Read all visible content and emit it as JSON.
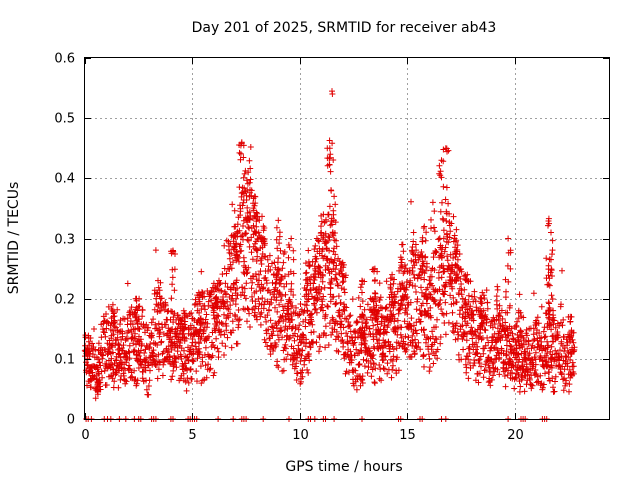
{
  "chart_data": {
    "type": "scatter",
    "title": "Day 201 of 2025, SRMTID for receiver ab43",
    "xlabel": "GPS time / hours",
    "ylabel": "SRMTID / TECUs",
    "xlim": [
      0,
      24.4
    ],
    "ylim": [
      0,
      0.6
    ],
    "xticks": [
      0,
      5,
      10,
      15,
      20
    ],
    "yticks": [
      0,
      0.1,
      0.2,
      0.3,
      0.4,
      0.5,
      0.6
    ],
    "xtick_labels": [
      "0",
      "5",
      "10",
      "15",
      "20"
    ],
    "ytick_labels": [
      "0",
      "0.1",
      "0.2",
      "0.3",
      "0.4",
      "0.5",
      "0.6"
    ],
    "grid": true,
    "marker": "+",
    "series_color": "#e00000",
    "description_envelope": [
      [
        0.0,
        0.11
      ],
      [
        0.3,
        0.09
      ],
      [
        0.6,
        0.08
      ],
      [
        1.0,
        0.12
      ],
      [
        1.5,
        0.11
      ],
      [
        2.0,
        0.12
      ],
      [
        2.5,
        0.13
      ],
      [
        3.0,
        0.1
      ],
      [
        3.5,
        0.15
      ],
      [
        4.0,
        0.13
      ],
      [
        4.5,
        0.11
      ],
      [
        5.0,
        0.12
      ],
      [
        5.5,
        0.14
      ],
      [
        6.0,
        0.15
      ],
      [
        6.5,
        0.19
      ],
      [
        7.0,
        0.24
      ],
      [
        7.5,
        0.3
      ],
      [
        8.0,
        0.26
      ],
      [
        8.5,
        0.2
      ],
      [
        9.0,
        0.18
      ],
      [
        9.5,
        0.15
      ],
      [
        10.0,
        0.12
      ],
      [
        10.5,
        0.17
      ],
      [
        11.0,
        0.22
      ],
      [
        11.5,
        0.24
      ],
      [
        12.0,
        0.16
      ],
      [
        12.5,
        0.1
      ],
      [
        13.0,
        0.12
      ],
      [
        13.5,
        0.14
      ],
      [
        14.0,
        0.13
      ],
      [
        14.5,
        0.16
      ],
      [
        15.0,
        0.18
      ],
      [
        15.5,
        0.2
      ],
      [
        16.0,
        0.16
      ],
      [
        16.5,
        0.22
      ],
      [
        17.0,
        0.25
      ],
      [
        17.5,
        0.19
      ],
      [
        18.0,
        0.14
      ],
      [
        18.5,
        0.13
      ],
      [
        19.0,
        0.12
      ],
      [
        19.5,
        0.12
      ],
      [
        20.0,
        0.1
      ],
      [
        20.5,
        0.1
      ],
      [
        21.0,
        0.11
      ],
      [
        21.5,
        0.12
      ],
      [
        22.0,
        0.11
      ],
      [
        22.5,
        0.1
      ],
      [
        22.8,
        0.11
      ]
    ],
    "peaks": [
      {
        "x": 0.1,
        "y": 0.115
      },
      {
        "x": 0.6,
        "y": 0.045
      },
      {
        "x": 1.3,
        "y": 0.19
      },
      {
        "x": 2.4,
        "y": 0.2
      },
      {
        "x": 3.4,
        "y": 0.23
      },
      {
        "x": 4.1,
        "y": 0.28
      },
      {
        "x": 4.6,
        "y": 0.18
      },
      {
        "x": 5.3,
        "y": 0.21
      },
      {
        "x": 6.1,
        "y": 0.2
      },
      {
        "x": 7.0,
        "y": 0.32
      },
      {
        "x": 7.3,
        "y": 0.46
      },
      {
        "x": 7.6,
        "y": 0.41
      },
      {
        "x": 7.9,
        "y": 0.37
      },
      {
        "x": 8.3,
        "y": 0.3
      },
      {
        "x": 9.0,
        "y": 0.33
      },
      {
        "x": 9.6,
        "y": 0.3
      },
      {
        "x": 10.4,
        "y": 0.28
      },
      {
        "x": 10.8,
        "y": 0.3
      },
      {
        "x": 11.1,
        "y": 0.34
      },
      {
        "x": 11.5,
        "y": 0.545
      },
      {
        "x": 11.4,
        "y": 0.45
      },
      {
        "x": 11.6,
        "y": 0.37
      },
      {
        "x": 12.0,
        "y": 0.26
      },
      {
        "x": 12.9,
        "y": 0.23
      },
      {
        "x": 13.5,
        "y": 0.25
      },
      {
        "x": 14.3,
        "y": 0.24
      },
      {
        "x": 14.8,
        "y": 0.29
      },
      {
        "x": 15.3,
        "y": 0.31
      },
      {
        "x": 15.8,
        "y": 0.32
      },
      {
        "x": 16.2,
        "y": 0.36
      },
      {
        "x": 16.6,
        "y": 0.43
      },
      {
        "x": 16.8,
        "y": 0.45
      },
      {
        "x": 17.2,
        "y": 0.3
      },
      {
        "x": 17.8,
        "y": 0.24
      },
      {
        "x": 18.5,
        "y": 0.21
      },
      {
        "x": 19.2,
        "y": 0.22
      },
      {
        "x": 19.7,
        "y": 0.3
      },
      {
        "x": 20.2,
        "y": 0.18
      },
      {
        "x": 21.6,
        "y": 0.333
      },
      {
        "x": 21.7,
        "y": 0.31
      },
      {
        "x": 21.7,
        "y": 0.265
      },
      {
        "x": 22.6,
        "y": 0.17
      }
    ],
    "zero_markers_x": [
      0.05,
      0.15,
      0.3,
      0.9,
      1.05,
      1.2,
      1.6,
      1.9,
      2.3,
      2.5,
      2.6,
      3.1,
      3.2,
      3.3,
      4.0,
      4.1,
      4.8,
      4.9,
      5.0,
      5.1,
      5.2,
      6.2,
      6.9,
      7.3,
      7.4,
      7.5,
      8.3,
      9.5,
      10.4,
      10.5,
      10.7,
      11.1,
      11.2,
      11.6,
      12.9,
      14.6,
      14.7,
      15.6,
      15.7,
      16.6,
      16.8,
      19.7,
      20.3,
      20.4,
      20.5,
      21.3,
      21.4,
      21.5
    ]
  }
}
